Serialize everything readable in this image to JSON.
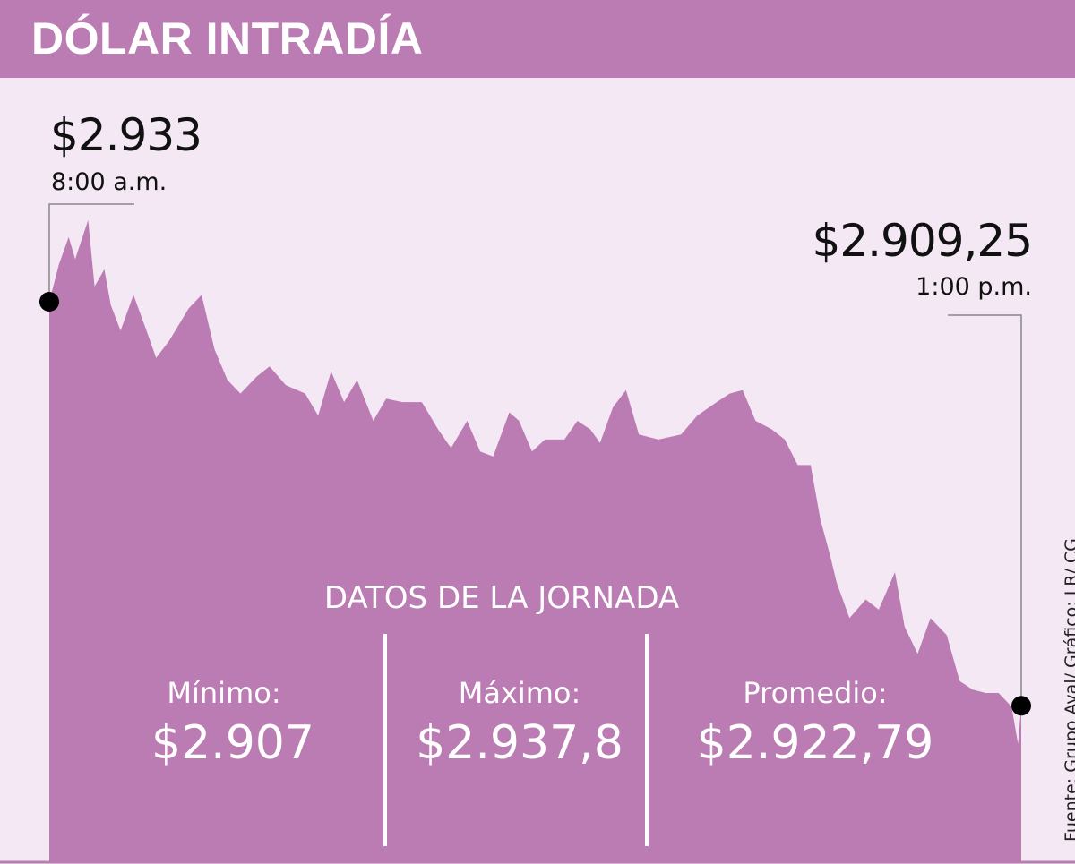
{
  "header": {
    "title": "DÓLAR INTRADÍA"
  },
  "annotations": {
    "open": {
      "value": "$2.933",
      "time": "8:00 a.m."
    },
    "close": {
      "value": "$2.909,25",
      "time": "1:00 p.m."
    }
  },
  "stats": {
    "heading": "DATOS DE LA JORNADA",
    "items": [
      {
        "label": "Mínimo:",
        "value": "$2.907"
      },
      {
        "label": "Máximo:",
        "value": "$2.937,8"
      },
      {
        "label": "Promedio:",
        "value": "$2.922,79"
      }
    ]
  },
  "source": "Fuente: Grupo Aval/ Gráfico: LR/ CG",
  "colors": {
    "header": "#bb7bb3",
    "area": "#bb7bb3",
    "background": "#f3e8f3",
    "marker": "#000000"
  },
  "chart_data": {
    "type": "area",
    "title": "DÓLAR INTRADÍA",
    "xlabel": "",
    "ylabel": "",
    "xlim": [
      "8:00",
      "13:00"
    ],
    "grid": false,
    "x": [
      "8:00",
      "8:03",
      "8:06",
      "8:08",
      "8:12",
      "8:14",
      "8:17",
      "8:19",
      "8:22",
      "8:26",
      "8:30",
      "8:33",
      "8:37",
      "8:43",
      "8:47",
      "8:51",
      "8:55",
      "8:59",
      "9:04",
      "9:08",
      "9:13",
      "9:19",
      "9:23",
      "9:27",
      "9:31",
      "9:35",
      "9:40",
      "9:44",
      "9:49",
      "9:55",
      "10:00",
      "10:04",
      "10:09",
      "10:13",
      "10:17",
      "10:22",
      "10:25",
      "10:29",
      "10:33",
      "10:39",
      "10:43",
      "10:47",
      "10:50",
      "10:54",
      "10:58",
      "11:02",
      "11:08",
      "11:15",
      "11:20",
      "11:26",
      "11:30",
      "11:34",
      "11:38",
      "11:43",
      "11:47",
      "11:51",
      "11:55",
      "11:58",
      "12:01",
      "12:03",
      "12:07",
      "12:12",
      "12:16",
      "12:21",
      "12:24",
      "12:28",
      "12:32",
      "12:37",
      "12:41",
      "12:45",
      "12:49",
      "12:53",
      "12:57",
      "12:59",
      "13:00"
    ],
    "values": [
      2933.0,
      2935.2,
      2936.8,
      2935.5,
      2937.8,
      2933.9,
      2934.9,
      2932.8,
      2931.3,
      2933.4,
      2931.3,
      2929.7,
      2930.7,
      2932.6,
      2933.4,
      2930.2,
      2928.4,
      2927.6,
      2928.6,
      2929.2,
      2928.1,
      2927.6,
      2926.3,
      2928.9,
      2927.1,
      2928.4,
      2926.0,
      2927.3,
      2927.1,
      2927.1,
      2925.5,
      2924.4,
      2926.0,
      2924.2,
      2923.9,
      2926.5,
      2926.0,
      2924.2,
      2924.9,
      2924.9,
      2926.0,
      2925.5,
      2924.7,
      2926.8,
      2927.8,
      2925.2,
      2924.9,
      2925.2,
      2926.3,
      2927.1,
      2927.6,
      2927.8,
      2926.0,
      2925.5,
      2924.9,
      2923.4,
      2923.4,
      2920.2,
      2918.1,
      2916.5,
      2914.4,
      2915.5,
      2914.9,
      2917.1,
      2913.9,
      2912.3,
      2914.4,
      2913.4,
      2910.7,
      2910.2,
      2910.0,
      2910.0,
      2909.2,
      2907.0,
      2909.25
    ],
    "markers": [
      {
        "x": "8:00",
        "value": 2933
      },
      {
        "x": "13:00",
        "value": 2909.25
      }
    ]
  }
}
